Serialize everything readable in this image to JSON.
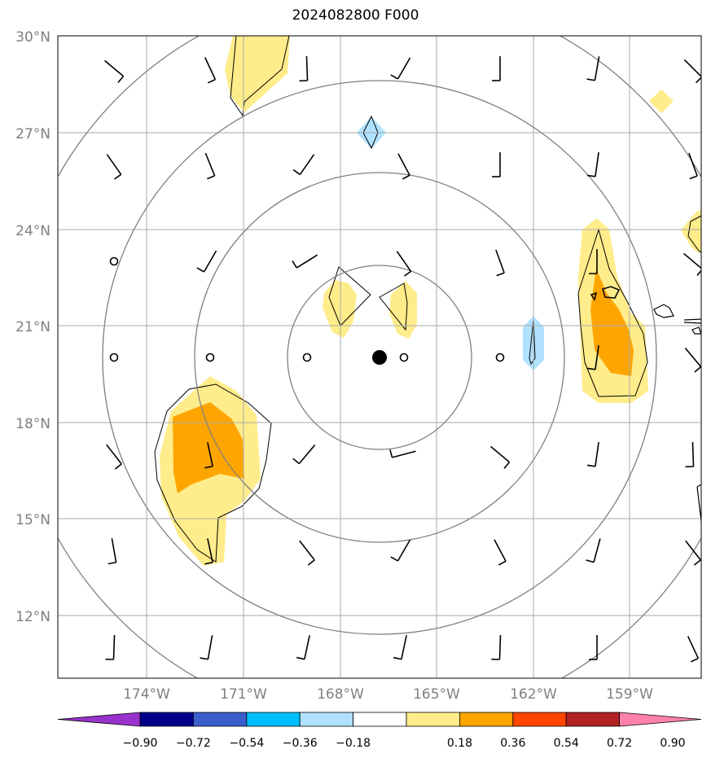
{
  "title": "2024082800 F000",
  "map": {
    "lat_labels": [
      "30°N",
      "27°N",
      "24°N",
      "21°N",
      "18°N",
      "15°N",
      "12°N"
    ],
    "lon_labels": [
      "174°W",
      "171°W",
      "168°W",
      "165°W",
      "162°W",
      "159°W"
    ],
    "center_marker": "storm-center",
    "grid_color": "#aaaaaa",
    "range_ring_color": "#808080"
  },
  "colorbar": {
    "tick_labels": [
      "−0.90",
      "−0.72",
      "−0.54",
      "−0.36",
      "−0.18",
      "0.18",
      "0.36",
      "0.54",
      "0.72",
      "0.90"
    ],
    "colors": [
      "#9932cc",
      "#00008b",
      "#3a5fcd",
      "#00bfff",
      "#b0e2ff",
      "#ffffff",
      "#ffec8b",
      "#ffa500",
      "#ff4500",
      "#b22222",
      "#ff82ab"
    ]
  },
  "fill_colors": {
    "pos_low": "#ffec8b",
    "pos_mid": "#ffa500",
    "neg_low": "#b0e2ff"
  }
}
